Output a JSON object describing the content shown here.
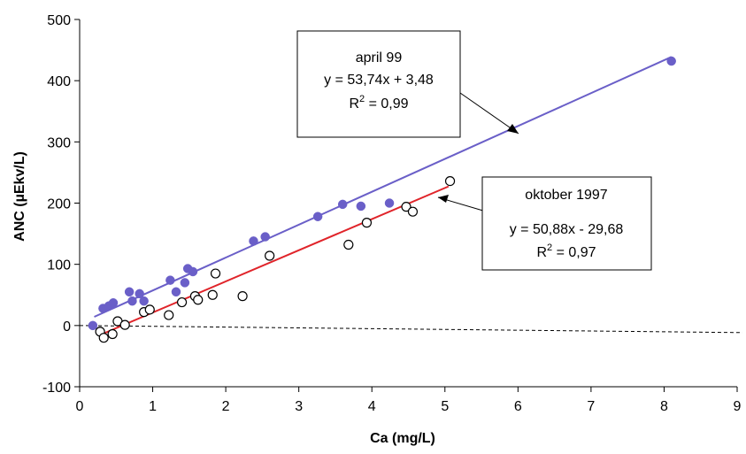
{
  "chart_data": {
    "type": "scatter",
    "xlabel": "Ca (mg/L)",
    "ylabel": "ANC (µEkv/L)",
    "xlim": [
      0,
      9
    ],
    "ylim": [
      -100,
      500
    ],
    "x_ticks": [
      "0",
      "1",
      "2",
      "3",
      "4",
      "5",
      "6",
      "7",
      "8",
      "9"
    ],
    "y_ticks": [
      "-100",
      "0",
      "100",
      "200",
      "300",
      "400",
      "500"
    ],
    "grid": false,
    "zero_line": "dashed",
    "series": [
      {
        "marker": "filled",
        "color": "#6a5fc8",
        "x": [
          0.18,
          0.32,
          0.4,
          0.46,
          0.68,
          0.72,
          0.82,
          0.88,
          1.24,
          1.32,
          1.44,
          1.48,
          1.55,
          2.38,
          2.54,
          3.26,
          3.6,
          3.85,
          4.24,
          8.1
        ],
        "y": [
          0,
          28,
          32,
          37,
          55,
          40,
          52,
          40,
          74,
          55,
          70,
          93,
          88,
          138,
          145,
          178,
          198,
          195,
          200,
          432
        ]
      },
      {
        "marker": "open",
        "color": "#000000",
        "x": [
          0.28,
          0.33,
          0.45,
          0.52,
          0.62,
          0.88,
          0.96,
          1.22,
          1.4,
          1.58,
          1.62,
          1.82,
          1.86,
          2.23,
          2.6,
          3.68,
          3.93,
          4.47,
          4.56,
          5.07
        ],
        "y": [
          -10,
          -20,
          -14,
          7,
          1,
          22,
          26,
          17,
          38,
          48,
          42,
          50,
          85,
          48,
          114,
          132,
          168,
          194,
          186,
          236
        ]
      }
    ],
    "trendlines": [
      {
        "slope": 53.74,
        "intercept": 3.48,
        "x_range": [
          0.2,
          8.1
        ],
        "color": "#6a5fc8"
      },
      {
        "slope": 50.88,
        "intercept": -29.68,
        "x_range": [
          0.3,
          5.05
        ],
        "color": "#e0242a"
      }
    ],
    "annotations": [
      {
        "title": "april 99",
        "equation": "y = 53,74x + 3,48",
        "r2_label": "R",
        "r2_sup": "2",
        "r2_value": " = 0,99"
      },
      {
        "title": "oktober 1997",
        "equation": "y = 50,88x - 29,68",
        "r2_label": "R",
        "r2_sup": "2",
        "r2_value": " = 0,97"
      }
    ]
  }
}
